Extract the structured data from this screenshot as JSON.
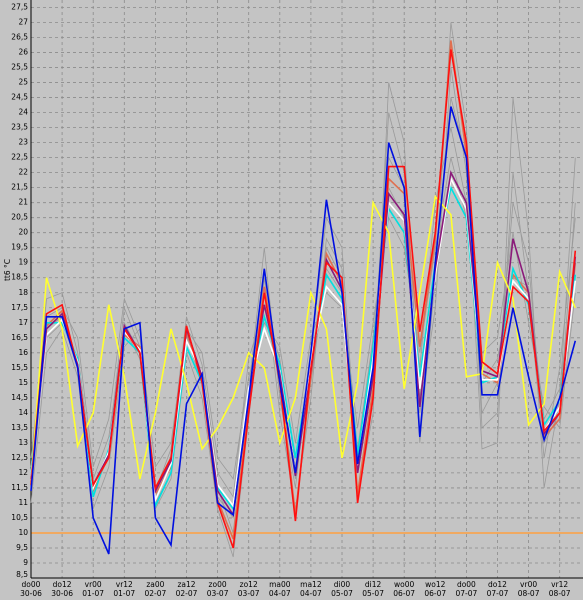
{
  "chart_data": {
    "type": "line",
    "y_label": "tt6 °C",
    "categories": [
      "do00\n30-06",
      null,
      "do12\n30-06",
      null,
      "vr00\n01-07",
      null,
      "vr12\n01-07",
      null,
      "za00\n02-07",
      null,
      "za12\n02-07",
      null,
      "zo00\n03-07",
      null,
      "zo12\n03-07",
      null,
      "ma00\n04-07",
      null,
      "ma12\n04-07",
      null,
      "di00\n05-07",
      null,
      "di12\n05-07",
      null,
      "wo00\n06-07",
      null,
      "wo12\n06-07",
      null,
      "do00\n07-07",
      null,
      "do12\n07-07",
      null,
      "vr00\n08-07",
      null,
      "vr12\n08-07",
      null
    ],
    "ylim": [
      8.5,
      27.75
    ],
    "yticks": [
      {
        "value": 8.5,
        "label": "8,5"
      },
      9,
      {
        "value": 9.5,
        "label": "9,5"
      },
      10,
      {
        "value": 10.5,
        "label": "10,5"
      },
      11,
      {
        "value": 11.5,
        "label": "11,5"
      },
      12,
      {
        "value": 12.5,
        "label": "12,5"
      },
      13,
      {
        "value": 13.5,
        "label": "13,5"
      },
      14,
      {
        "value": 14.5,
        "label": "14,5"
      },
      15,
      {
        "value": 15.5,
        "label": "15,5"
      },
      16,
      {
        "value": 16.5,
        "label": "16,5"
      },
      17,
      {
        "value": 17.5,
        "label": "17,5"
      },
      18,
      {
        "value": 18.5,
        "label": "18,5"
      },
      19,
      {
        "value": 19.5,
        "label": "19,5"
      },
      20,
      {
        "value": 20.5,
        "label": "20,5"
      },
      21,
      {
        "value": 21.5,
        "label": "21,5"
      },
      22,
      {
        "value": 22.5,
        "label": "22,5"
      },
      23,
      {
        "value": 23.5,
        "label": "23,5"
      },
      24,
      {
        "value": 24.5,
        "label": "24,5"
      },
      25,
      {
        "value": 25.5,
        "label": "25,5"
      },
      26,
      {
        "value": 26.5,
        "label": "26,5"
      },
      27,
      {
        "value": 27.5,
        "label": "27,5"
      }
    ],
    "grid": true,
    "reference_line": {
      "value": 10,
      "color": "#ffa040"
    },
    "series": [
      {
        "color": "#9a9a9a",
        "values": [
          11.8,
          16.5,
          17.0,
          15.8,
          11.2,
          12.8,
          17.5,
          16.2,
          11.0,
          12.0,
          16.5,
          15.0,
          11.5,
          10.0,
          14.8,
          19.5,
          14.5,
          11.5,
          16.0,
          20.5,
          19.5,
          12.0,
          15.5,
          24.0,
          22.0,
          13.0,
          18.5,
          27.0,
          23.5,
          13.5,
          14.0,
          22.0,
          18.0,
          12.5,
          15.5,
          20.5
        ]
      },
      {
        "color": "#9a9a9a",
        "values": [
          12.2,
          17.8,
          18.0,
          16.0,
          11.8,
          13.2,
          16.8,
          15.8,
          11.4,
          12.8,
          17.2,
          15.6,
          12.0,
          11.2,
          15.8,
          17.5,
          15.8,
          12.2,
          15.0,
          18.8,
          18.0,
          12.8,
          16.5,
          21.5,
          20.5,
          15.5,
          21.0,
          23.5,
          21.0,
          16.0,
          16.5,
          20.0,
          17.0,
          14.2,
          13.5,
          18.0
        ]
      },
      {
        "color": "#9a9a9a",
        "values": [
          11.0,
          16.0,
          16.8,
          15.2,
          10.8,
          12.2,
          16.2,
          16.8,
          10.8,
          11.8,
          16.0,
          14.5,
          10.8,
          9.2,
          13.8,
          18.5,
          14.0,
          10.8,
          14.5,
          19.8,
          18.8,
          11.2,
          14.0,
          25.0,
          23.0,
          14.0,
          17.5,
          25.5,
          22.0,
          12.8,
          13.0,
          24.5,
          20.0,
          11.5,
          14.5,
          22.5
        ]
      },
      {
        "color": "#9a9a9a",
        "values": [
          12.5,
          17.2,
          17.5,
          16.5,
          12.2,
          13.8,
          17.8,
          16.5,
          12.2,
          13.0,
          16.8,
          16.0,
          12.5,
          11.8,
          15.2,
          17.0,
          16.2,
          13.0,
          16.5,
          18.0,
          17.5,
          13.5,
          17.0,
          20.5,
          19.5,
          16.0,
          19.5,
          22.5,
          20.5,
          15.0,
          15.8,
          18.5,
          18.2,
          13.8,
          14.8,
          19.0
        ]
      },
      {
        "color": "#9a9a9a",
        "values": [
          11.5,
          16.8,
          17.2,
          15.5,
          11.5,
          12.5,
          17.0,
          16.0,
          11.2,
          12.4,
          16.6,
          15.2,
          11.2,
          10.5,
          14.5,
          18.0,
          15.0,
          11.8,
          15.5,
          19.5,
          18.5,
          12.5,
          15.0,
          22.5,
          21.5,
          14.5,
          19.0,
          24.5,
          22.5,
          14.0,
          15.0,
          21.0,
          19.0,
          13.0,
          14.0,
          21.0
        ]
      },
      {
        "color": "#e07050",
        "values": [
          11.7,
          16.9,
          17.4,
          15.6,
          11.4,
          12.6,
          16.6,
          16.2,
          11.3,
          12.2,
          16.7,
          15.1,
          11.1,
          9.8,
          14.2,
          18.2,
          15.2,
          10.6,
          15.2,
          19.3,
          18.3,
          11.3,
          14.8,
          21.8,
          21.3,
          16.2,
          19.8,
          26.4,
          22.6,
          15.3,
          15.0,
          18.6,
          18.0,
          13.2,
          13.8,
          19.0
        ]
      },
      {
        "color": "#00e0e0",
        "values": [
          12.0,
          17.0,
          17.0,
          15.8,
          11.2,
          12.8,
          16.5,
          16.0,
          10.9,
          12.0,
          16.2,
          15.0,
          11.5,
          10.8,
          14.6,
          17.2,
          15.6,
          12.5,
          15.6,
          18.6,
          17.8,
          12.6,
          16.2,
          20.8,
          20.0,
          15.2,
          19.0,
          21.5,
          20.5,
          15.0,
          15.2,
          18.8,
          17.6,
          13.6,
          14.4,
          18.6
        ]
      },
      {
        "color": "#ffffff",
        "values": [
          11.9,
          16.6,
          17.1,
          15.7,
          11.5,
          12.7,
          16.7,
          16.1,
          11.1,
          12.3,
          16.4,
          15.3,
          11.6,
          10.9,
          14.8,
          16.8,
          15.4,
          12.0,
          15.8,
          18.2,
          17.6,
          12.2,
          15.8,
          21.0,
          20.4,
          14.8,
          18.6,
          21.8,
          20.8,
          15.1,
          15.1,
          18.4,
          17.8,
          13.4,
          14.2,
          18.4
        ]
      },
      {
        "color": "#8b1a7a",
        "values": [
          11.8,
          16.8,
          17.3,
          15.6,
          11.6,
          12.6,
          16.9,
          16.0,
          11.4,
          12.4,
          16.8,
          15.2,
          11.4,
          10.6,
          14.4,
          17.6,
          15.3,
          11.9,
          15.4,
          19.1,
          18.1,
          12.0,
          15.2,
          21.3,
          20.6,
          14.2,
          18.8,
          22.0,
          21.0,
          15.4,
          15.2,
          19.8,
          18.0,
          13.3,
          14.0,
          19.2
        ]
      },
      {
        "color": "#ffff30",
        "values": [
          11.6,
          18.5,
          16.8,
          12.9,
          14.0,
          17.6,
          15.2,
          11.8,
          14.0,
          16.8,
          15.0,
          12.8,
          13.5,
          14.5,
          16.0,
          15.5,
          13.0,
          14.5,
          18.0,
          16.8,
          12.5,
          15.0,
          21.0,
          20.0,
          14.8,
          18.0,
          21.2,
          20.6,
          15.2,
          15.3,
          19.0,
          17.8,
          13.6,
          14.3,
          18.7,
          17.5
        ]
      },
      {
        "color": "#ff1010",
        "values": [
          11.6,
          17.3,
          17.6,
          15.5,
          11.6,
          12.5,
          16.8,
          16.0,
          11.5,
          12.5,
          16.9,
          15.0,
          11.0,
          9.5,
          14.0,
          18.0,
          15.0,
          10.4,
          15.5,
          19.0,
          18.5,
          11.0,
          14.5,
          22.2,
          22.2,
          16.7,
          20.0,
          26.1,
          23.0,
          15.7,
          15.3,
          18.2,
          17.7,
          13.4,
          14.0,
          19.4
        ]
      },
      {
        "color": "#0010e0",
        "values": [
          11.4,
          17.2,
          17.2,
          15.5,
          10.5,
          9.3,
          16.8,
          17.0,
          10.5,
          9.6,
          14.3,
          15.3,
          11.0,
          10.6,
          14.5,
          18.8,
          15.0,
          12.0,
          16.0,
          21.1,
          18.0,
          12.3,
          15.5,
          23.0,
          21.5,
          13.2,
          19.0,
          24.2,
          22.5,
          14.6,
          14.6,
          17.5,
          15.2,
          13.1,
          14.5,
          16.4
        ]
      }
    ]
  }
}
